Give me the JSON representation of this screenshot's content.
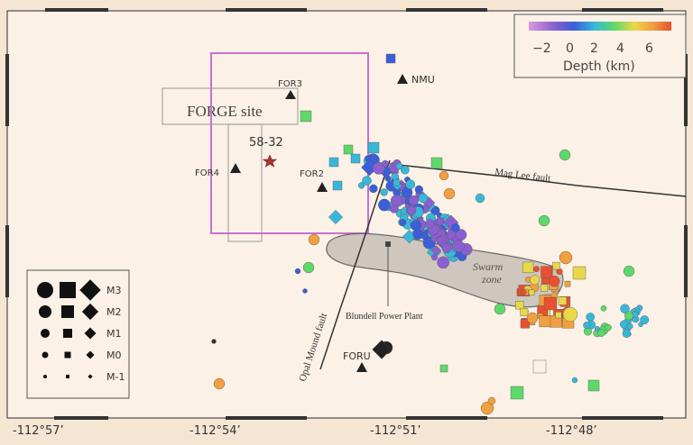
{
  "map": {
    "bounds_lon_labels": [
      "-112°57’",
      "-112°54’",
      "-112°51’",
      "-112°48’"
    ],
    "site_label": "FORGE site",
    "well_label": "58-32",
    "faults": [
      {
        "id": "mag-lee",
        "label": "Mag Lee fault"
      },
      {
        "id": "opal-mound",
        "label": "Opal Mound fault"
      }
    ],
    "swarm_label_line1": "Swarm",
    "swarm_label_line2": "zone",
    "power_plant_label": "Blundell Power Plant",
    "stations": [
      "FOR3",
      "NMU",
      "FOR4",
      "FOR2",
      "FORU"
    ],
    "colorbar": {
      "title": "Depth (km)",
      "ticks": [
        "−2",
        "0",
        "2",
        "4",
        "6"
      ],
      "colors": [
        "#d89ad8",
        "#8a5fd0",
        "#3b5fd8",
        "#38b8d8",
        "#5ed86a",
        "#e8d84a",
        "#f0a040",
        "#e85030"
      ]
    },
    "legend": {
      "magnitudes": [
        "M3",
        "M2",
        "M1",
        "M0",
        "M-1"
      ]
    },
    "colors": {
      "background": "#f5e6d4",
      "site_box": "#c870d0",
      "frame": "#2a2a2a"
    }
  }
}
